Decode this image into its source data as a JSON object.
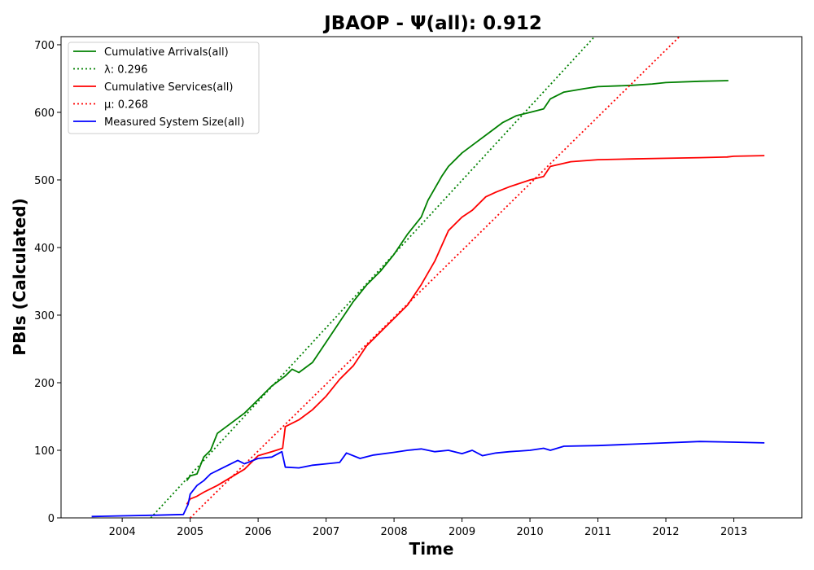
{
  "chart_data": {
    "type": "line",
    "title": "JBAOP -  Ψ(all): 0.912",
    "xlabel": "Time",
    "ylabel": "PBIs (Calculated)",
    "xlim": [
      2003.1,
      2014.0
    ],
    "ylim": [
      0,
      712
    ],
    "x_ticks": [
      "2004",
      "2005",
      "2006",
      "2007",
      "2008",
      "2009",
      "2010",
      "2011",
      "2012",
      "2013"
    ],
    "y_ticks": [
      "0",
      "100",
      "200",
      "300",
      "400",
      "500",
      "600",
      "700"
    ],
    "legend_position": "top-left",
    "grid": false,
    "series": [
      {
        "name": "Cumulative Arrivals(all)",
        "color": "#008000",
        "style": "solid",
        "x": [
          2004.95,
          2005.0,
          2005.1,
          2005.2,
          2005.3,
          2005.4,
          2005.6,
          2005.8,
          2005.9,
          2006.0,
          2006.2,
          2006.4,
          2006.5,
          2006.6,
          2006.8,
          2007.0,
          2007.2,
          2007.4,
          2007.6,
          2007.8,
          2008.0,
          2008.2,
          2008.4,
          2008.5,
          2008.7,
          2008.8,
          2009.0,
          2009.2,
          2009.4,
          2009.6,
          2009.8,
          2010.0,
          2010.2,
          2010.3,
          2010.5,
          2010.8,
          2011.0,
          2011.5,
          2011.8,
          2012.0,
          2012.5,
          2012.92
        ],
        "y": [
          55,
          62,
          65,
          90,
          100,
          125,
          140,
          155,
          165,
          175,
          195,
          210,
          220,
          215,
          230,
          260,
          290,
          320,
          345,
          365,
          390,
          420,
          445,
          470,
          505,
          520,
          540,
          555,
          570,
          585,
          595,
          600,
          605,
          620,
          630,
          635,
          638,
          640,
          642,
          644,
          646,
          647
        ]
      },
      {
        "name": "λ: 0.296",
        "color": "#008000",
        "style": "dotted",
        "x": [
          2004.42,
          2010.95
        ],
        "y": [
          0,
          712
        ]
      },
      {
        "name": "Cumulative Services(all)",
        "color": "#ff0000",
        "style": "solid",
        "x": [
          2004.95,
          2005.0,
          2005.1,
          2005.2,
          2005.4,
          2005.6,
          2005.8,
          2006.0,
          2006.2,
          2006.36,
          2006.4,
          2006.6,
          2006.8,
          2007.0,
          2007.2,
          2007.4,
          2007.6,
          2007.8,
          2008.0,
          2008.2,
          2008.4,
          2008.6,
          2008.8,
          2009.0,
          2009.15,
          2009.35,
          2009.5,
          2009.7,
          2010.0,
          2010.2,
          2010.3,
          2010.6,
          2011.0,
          2011.5,
          2012.0,
          2012.5,
          2012.9,
          2013.0,
          2013.45
        ],
        "y": [
          20,
          28,
          32,
          38,
          48,
          60,
          72,
          92,
          98,
          103,
          135,
          145,
          160,
          180,
          205,
          225,
          255,
          275,
          295,
          315,
          345,
          380,
          425,
          445,
          455,
          475,
          482,
          490,
          500,
          505,
          520,
          527,
          530,
          531,
          532,
          533,
          534,
          535,
          536
        ]
      },
      {
        "name": "μ: 0.268",
        "color": "#ff0000",
        "style": "dotted",
        "x": [
          2005.0,
          2012.2
        ],
        "y": [
          0,
          712
        ]
      },
      {
        "name": "Measured System Size(all)",
        "color": "#0000ff",
        "style": "solid",
        "x": [
          2003.55,
          2004.0,
          2004.5,
          2004.9,
          2004.97,
          2005.0,
          2005.1,
          2005.2,
          2005.3,
          2005.5,
          2005.7,
          2005.8,
          2006.0,
          2006.2,
          2006.35,
          2006.4,
          2006.6,
          2006.8,
          2007.0,
          2007.2,
          2007.3,
          2007.5,
          2007.7,
          2008.0,
          2008.2,
          2008.4,
          2008.6,
          2008.8,
          2009.0,
          2009.15,
          2009.3,
          2009.5,
          2009.7,
          2010.0,
          2010.2,
          2010.3,
          2010.5,
          2011.0,
          2011.5,
          2012.0,
          2012.5,
          2013.0,
          2013.45
        ],
        "y": [
          2,
          3,
          4,
          5,
          20,
          35,
          48,
          55,
          65,
          75,
          85,
          80,
          88,
          90,
          98,
          75,
          74,
          78,
          80,
          82,
          96,
          88,
          93,
          97,
          100,
          102,
          98,
          100,
          95,
          100,
          92,
          96,
          98,
          100,
          103,
          100,
          106,
          107,
          109,
          111,
          113,
          112,
          111
        ]
      }
    ]
  }
}
